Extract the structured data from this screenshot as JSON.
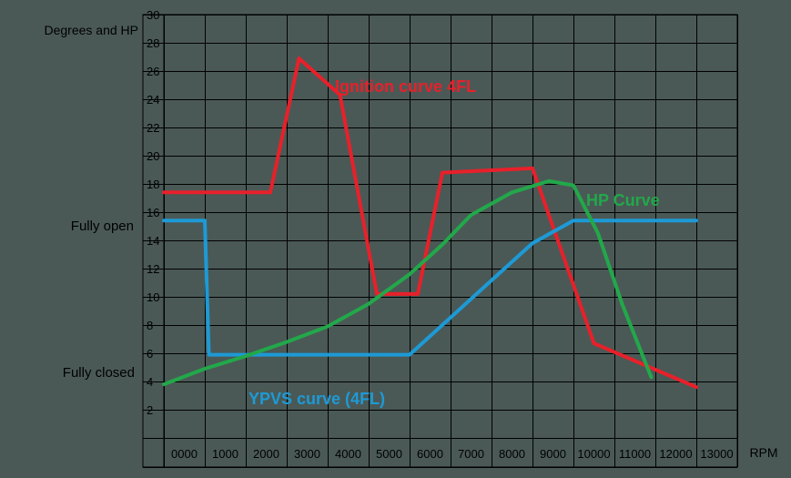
{
  "chart_data": {
    "type": "line",
    "title": "",
    "ylabel": "Degrees and HP",
    "xlabel": "RPM",
    "x_tick_labels": [
      "0000",
      "1000",
      "2000",
      "3000",
      "4000",
      "5000",
      "6000",
      "7000",
      "8000",
      "9000",
      "10000",
      "11000",
      "12000",
      "13000"
    ],
    "y_tick_labels": [
      "2",
      "4",
      "6",
      "8",
      "10",
      "12",
      "14",
      "16",
      "18",
      "20",
      "22",
      "24",
      "26",
      "28",
      "30"
    ],
    "xlim": [
      0,
      14000
    ],
    "ylim": [
      0,
      30
    ],
    "grid": true,
    "annotations": {
      "fully_open": "Fully open",
      "fully_closed": "Fully closed"
    },
    "series": [
      {
        "name": "Ignition curve 4FL",
        "color": "#e8202a",
        "points": [
          [
            0,
            17.4
          ],
          [
            2600,
            17.4
          ],
          [
            3300,
            26.9
          ],
          [
            4300,
            24.3
          ],
          [
            5200,
            10.2
          ],
          [
            6200,
            10.2
          ],
          [
            6800,
            18.8
          ],
          [
            9000,
            19.1
          ],
          [
            10500,
            6.7
          ],
          [
            13000,
            3.6
          ]
        ]
      },
      {
        "name": "YPVS curve (4FL)",
        "color": "#1d9ad6",
        "points": [
          [
            0,
            15.4
          ],
          [
            1000,
            15.4
          ],
          [
            1100,
            5.9
          ],
          [
            6000,
            5.9
          ],
          [
            9000,
            13.8
          ],
          [
            10000,
            15.4
          ],
          [
            13000,
            15.4
          ]
        ]
      },
      {
        "name": "HP Curve",
        "color": "#22a84a",
        "points": [
          [
            0,
            3.8
          ],
          [
            1000,
            4.9
          ],
          [
            2000,
            5.8
          ],
          [
            3000,
            6.8
          ],
          [
            4000,
            7.9
          ],
          [
            5000,
            9.5
          ],
          [
            6000,
            11.6
          ],
          [
            6800,
            13.7
          ],
          [
            7500,
            15.8
          ],
          [
            8500,
            17.4
          ],
          [
            9400,
            18.2
          ],
          [
            10000,
            17.9
          ],
          [
            10600,
            14.5
          ],
          [
            11200,
            9.4
          ],
          [
            11900,
            4.3
          ]
        ]
      }
    ]
  }
}
